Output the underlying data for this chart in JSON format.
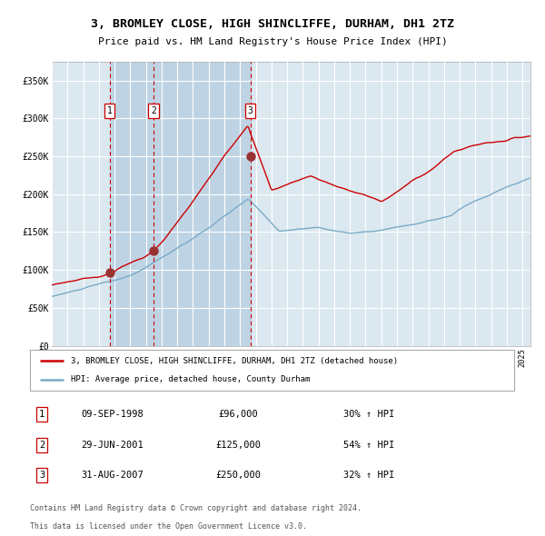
{
  "title": "3, BROMLEY CLOSE, HIGH SHINCLIFFE, DURHAM, DH1 2TZ",
  "subtitle": "Price paid vs. HM Land Registry's House Price Index (HPI)",
  "legend_red": "3, BROMLEY CLOSE, HIGH SHINCLIFFE, DURHAM, DH1 2TZ (detached house)",
  "legend_blue": "HPI: Average price, detached house, County Durham",
  "footer1": "Contains HM Land Registry data © Crown copyright and database right 2024.",
  "footer2": "This data is licensed under the Open Government Licence v3.0.",
  "transactions": [
    {
      "num": 1,
      "date": "09-SEP-1998",
      "price": 96000,
      "hpi": "30% ↑ HPI",
      "year": 1998.69
    },
    {
      "num": 2,
      "date": "29-JUN-2001",
      "price": 125000,
      "hpi": "54% ↑ HPI",
      "year": 2001.49
    },
    {
      "num": 3,
      "date": "31-AUG-2007",
      "price": 250000,
      "hpi": "32% ↑ HPI",
      "year": 2007.66
    }
  ],
  "ylim": [
    0,
    375000
  ],
  "xlim_start": 1995.0,
  "xlim_end": 2025.5,
  "background_color": "#ffffff",
  "plot_bg_color": "#dce8f0",
  "shade_color": "#bed4e4",
  "grid_color": "#ffffff",
  "red_color": "#cc0000",
  "blue_color": "#7aaac8",
  "dashed_color": "#cc0000"
}
